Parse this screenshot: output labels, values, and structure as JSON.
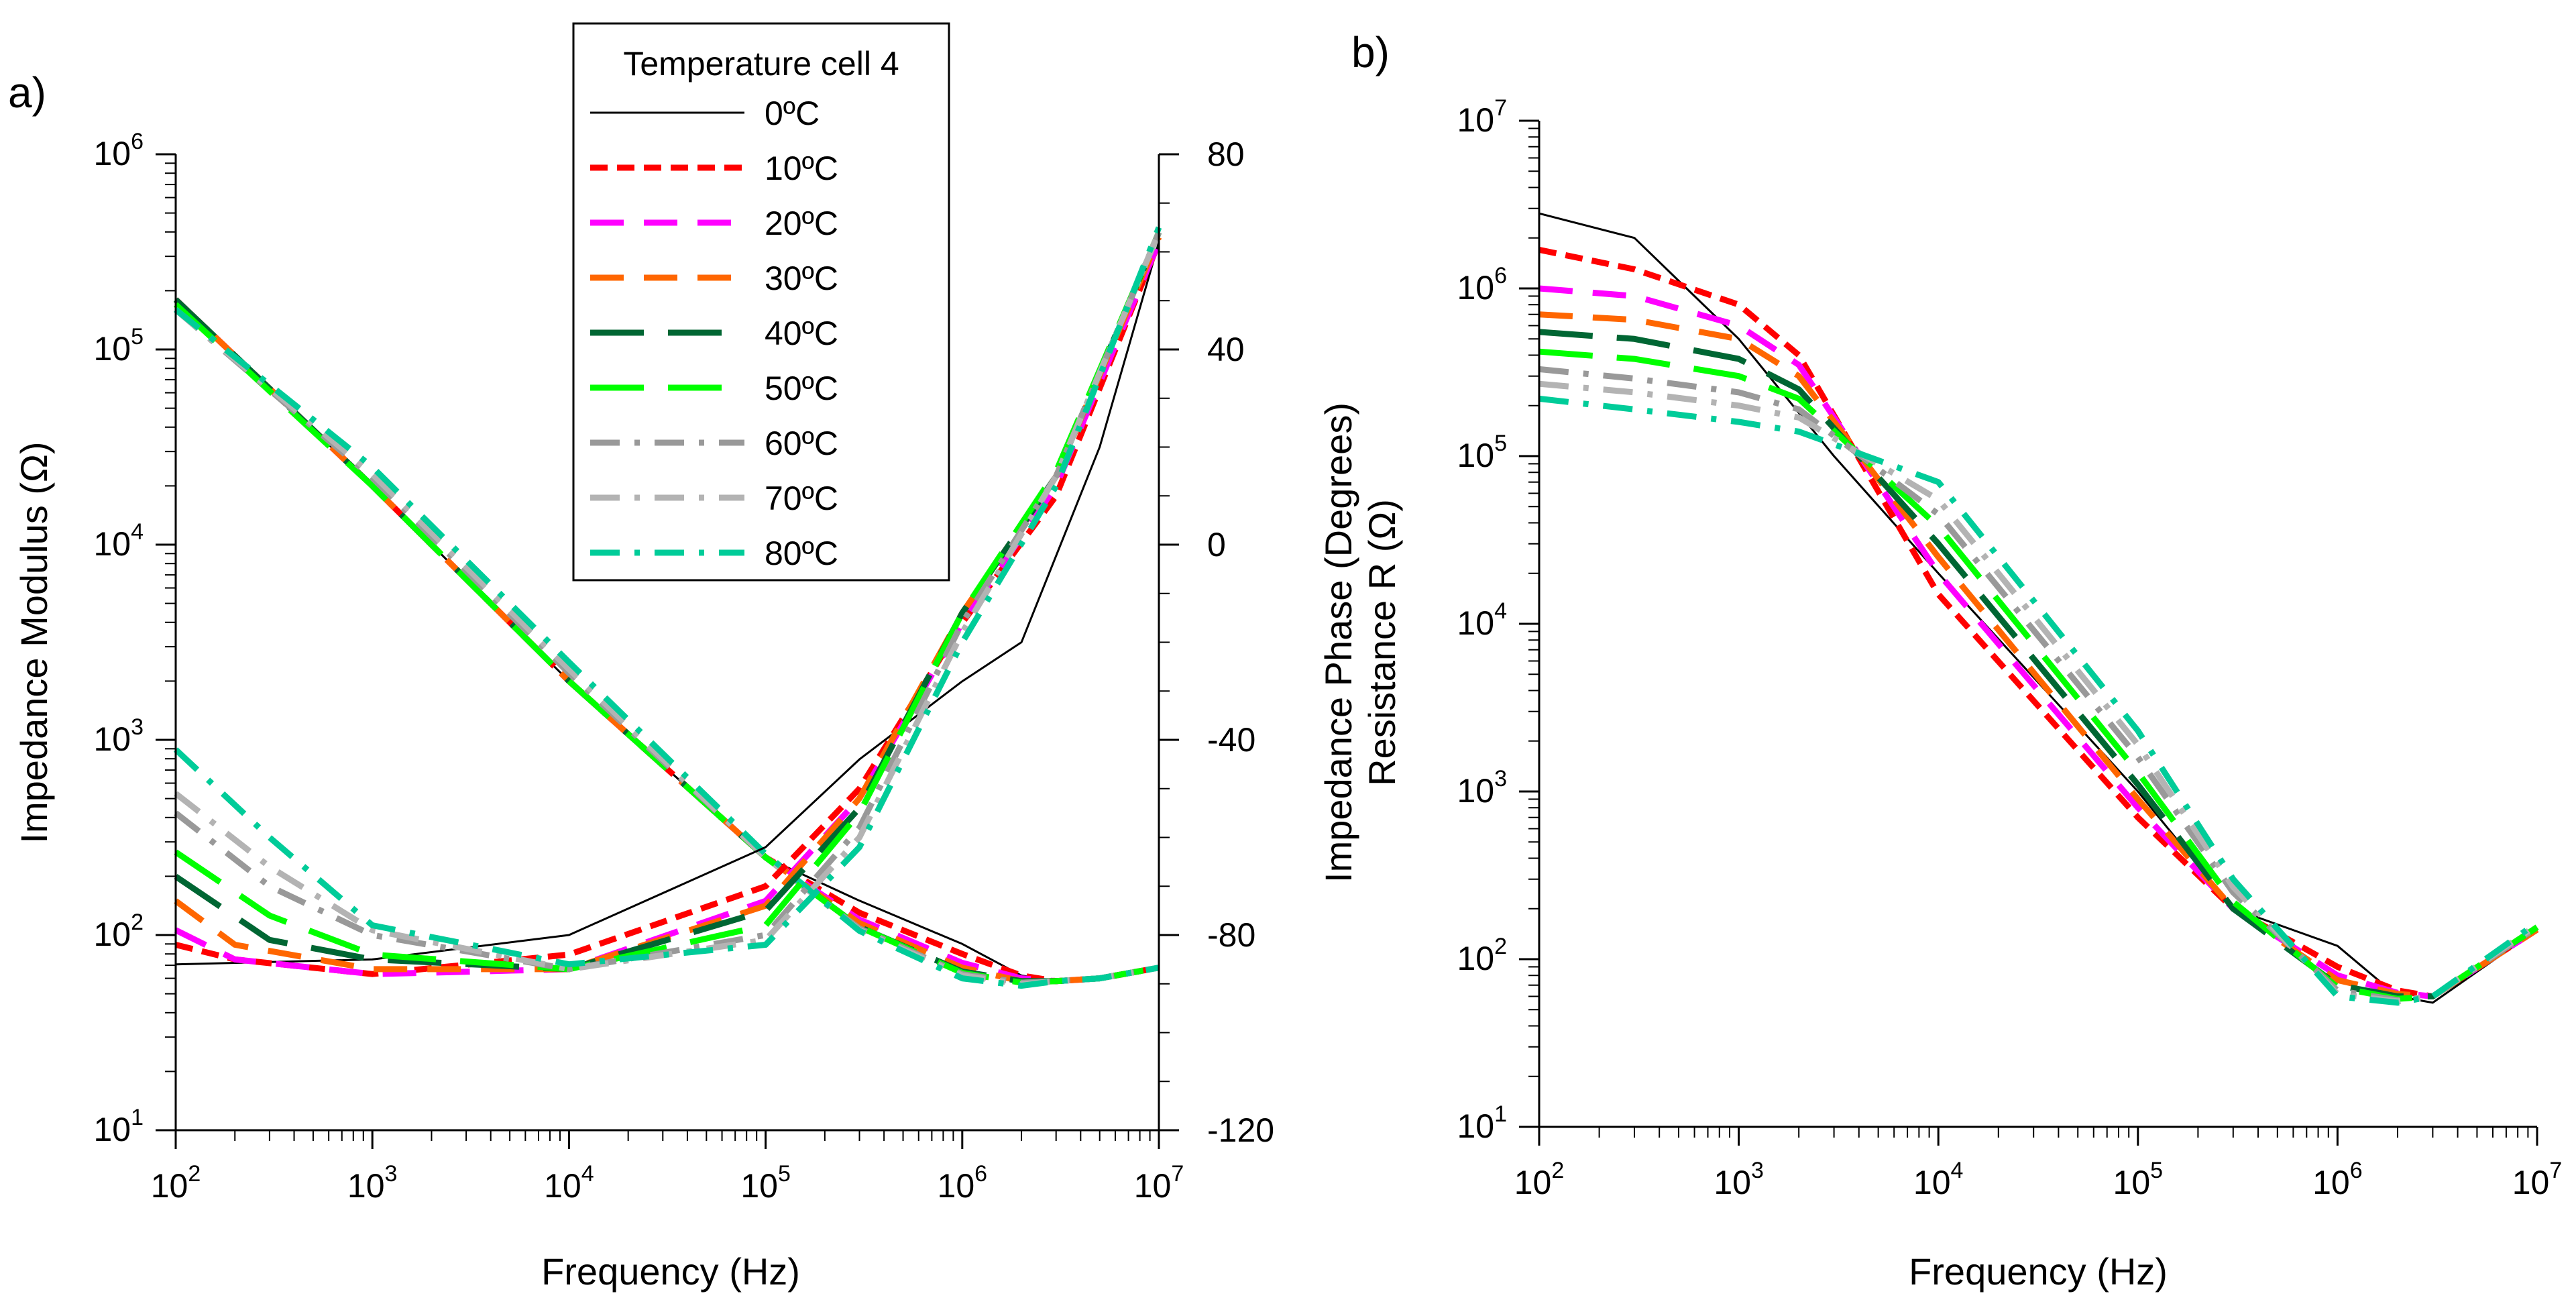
{
  "colors": {
    "0C": "#000000",
    "10C": "#ff0000",
    "20C": "#ff00ff",
    "30C": "#ff6600",
    "40C": "#006633",
    "50C": "#00ff00",
    "60C": "#999999",
    "70C": "#b3b3b3",
    "80C": "#00cc99"
  },
  "panel_a": {
    "label": "a)"
  },
  "panel_b": {
    "label": "b)"
  },
  "legend": {
    "title": "Temperature cell 4",
    "entries": [
      "0ºC",
      "10ºC",
      "20ºC",
      "30ºC",
      "40ºC",
      "50ºC",
      "60ºC",
      "70ºC",
      "80ºC"
    ]
  },
  "chart_data": [
    {
      "type": "line",
      "panel": "a",
      "title": "",
      "xlabel": "Frequency (Hz)",
      "ylabel": "Impedance Modulus (Ω)",
      "y2label": "Impedance Phase (Degrees)",
      "xscale": "log",
      "xlim": [
        100,
        10000000
      ],
      "yscale": "log",
      "ylim": [
        10,
        1000000
      ],
      "y2lim": [
        -120,
        80
      ],
      "x_ticks": [
        "10^2",
        "10^3",
        "10^4",
        "10^5",
        "10^6",
        "10^7"
      ],
      "y_ticks": [
        "10^1",
        "10^2",
        "10^3",
        "10^4",
        "10^5",
        "10^6"
      ],
      "y2_ticks": [
        "-120",
        "-80",
        "-40",
        "0",
        "40",
        "80"
      ],
      "modulus_series": [
        {
          "name": "0ºC",
          "color": "#000000",
          "dash": "solid",
          "width": 3,
          "x": [
            100,
            1000,
            10000,
            100000,
            300000,
            1000000,
            2000000,
            3000000,
            5000000,
            10000000
          ],
          "y": [
            180000,
            20000,
            2000,
            250,
            150,
            90,
            62,
            58,
            60,
            68
          ]
        },
        {
          "name": "10ºC",
          "color": "#ff0000",
          "dash": "dash",
          "width": 9,
          "x": [
            100,
            1000,
            10000,
            100000,
            300000,
            1000000,
            2000000,
            3000000,
            5000000,
            10000000
          ],
          "y": [
            180000,
            20000,
            2000,
            250,
            130,
            80,
            62,
            58,
            60,
            68
          ]
        },
        {
          "name": "20ºC",
          "color": "#ff00ff",
          "dash": "longdash",
          "width": 9,
          "x": [
            100,
            1000,
            10000,
            100000,
            300000,
            1000000,
            2000000,
            3000000,
            5000000,
            10000000
          ],
          "y": [
            180000,
            20000,
            2000,
            250,
            120,
            72,
            60,
            58,
            60,
            68
          ]
        },
        {
          "name": "30ºC",
          "color": "#ff6600",
          "dash": "longdash",
          "width": 9,
          "x": [
            100,
            1000,
            10000,
            100000,
            300000,
            1000000,
            2000000,
            3000000,
            5000000,
            10000000
          ],
          "y": [
            180000,
            20000,
            2000,
            250,
            115,
            68,
            58,
            58,
            60,
            68
          ]
        },
        {
          "name": "40ºC",
          "color": "#006633",
          "dash": "longdash2",
          "width": 9,
          "x": [
            100,
            1000,
            10000,
            100000,
            300000,
            1000000,
            2000000,
            3000000,
            5000000,
            10000000
          ],
          "y": [
            180000,
            20000,
            2000,
            250,
            110,
            65,
            58,
            58,
            60,
            68
          ]
        },
        {
          "name": "50ºC",
          "color": "#00ff00",
          "dash": "longdash2",
          "width": 9,
          "x": [
            100,
            1000,
            10000,
            100000,
            300000,
            1000000,
            2000000,
            3000000,
            5000000,
            10000000
          ],
          "y": [
            170000,
            20000,
            2000,
            250,
            110,
            64,
            57,
            58,
            60,
            68
          ]
        },
        {
          "name": "60ºC",
          "color": "#999999",
          "dash": "dashdot",
          "width": 9,
          "x": [
            100,
            1000,
            10000,
            100000,
            300000,
            1000000,
            2000000,
            3000000,
            5000000,
            10000000
          ],
          "y": [
            160000,
            22000,
            2200,
            250,
            108,
            63,
            57,
            58,
            60,
            68
          ]
        },
        {
          "name": "70ºC",
          "color": "#b3b3b3",
          "dash": "dashdot",
          "width": 9,
          "x": [
            100,
            1000,
            10000,
            100000,
            300000,
            1000000,
            2000000,
            3000000,
            5000000,
            10000000
          ],
          "y": [
            160000,
            23000,
            2300,
            250,
            106,
            62,
            56,
            58,
            60,
            68
          ]
        },
        {
          "name": "80ºC",
          "color": "#00cc99",
          "dash": "dashdot",
          "width": 9,
          "x": [
            100,
            1000,
            10000,
            100000,
            300000,
            1000000,
            2000000,
            3000000,
            5000000,
            10000000
          ],
          "y": [
            160000,
            25000,
            2500,
            260,
            105,
            60,
            55,
            58,
            60,
            68
          ]
        }
      ],
      "phase_series": [
        {
          "name": "0ºC",
          "color": "#000000",
          "dash": "solid",
          "width": 3,
          "x": [
            100,
            1000,
            10000,
            100000,
            300000,
            1000000,
            2000000,
            5000000,
            10000000
          ],
          "y": [
            -86,
            -85,
            -80,
            -62,
            -44,
            -28,
            -20,
            20,
            62
          ]
        },
        {
          "name": "10ºC",
          "color": "#ff0000",
          "dash": "dash",
          "width": 9,
          "x": [
            100,
            200,
            1000,
            10000,
            100000,
            300000,
            1000000,
            3000000,
            10000000
          ],
          "y": [
            -82,
            -85,
            -88,
            -84,
            -70,
            -50,
            -16,
            10,
            62
          ]
        },
        {
          "name": "20ºC",
          "color": "#ff00ff",
          "dash": "longdash",
          "width": 9,
          "x": [
            100,
            200,
            1000,
            10000,
            100000,
            300000,
            1000000,
            3000000,
            10000000
          ],
          "y": [
            -79,
            -85,
            -88,
            -87,
            -73,
            -52,
            -16,
            12,
            62
          ]
        },
        {
          "name": "30ºC",
          "color": "#ff6600",
          "dash": "longdash",
          "width": 9,
          "x": [
            100,
            200,
            1000,
            10000,
            100000,
            300000,
            1000000,
            3000000,
            10000000
          ],
          "y": [
            -73,
            -82,
            -87,
            -87,
            -74,
            -52,
            -14,
            14,
            63
          ]
        },
        {
          "name": "40ºC",
          "color": "#006633",
          "dash": "longdash2",
          "width": 9,
          "x": [
            100,
            300,
            1000,
            10000,
            100000,
            300000,
            1000000,
            3000000,
            10000000
          ],
          "y": [
            -68,
            -81,
            -85,
            -87,
            -75,
            -54,
            -14,
            14,
            64
          ]
        },
        {
          "name": "50ºC",
          "color": "#00ff00",
          "dash": "longdash2",
          "width": 9,
          "x": [
            100,
            300,
            1000,
            10000,
            100000,
            300000,
            1000000,
            3000000,
            10000000
          ],
          "y": [
            -63,
            -76,
            -84,
            -87,
            -78,
            -55,
            -14,
            15,
            64
          ]
        },
        {
          "name": "60ºC",
          "color": "#999999",
          "dash": "dashdot",
          "width": 9,
          "x": [
            100,
            300,
            1000,
            10000,
            100000,
            300000,
            1000000,
            3000000,
            10000000
          ],
          "y": [
            -55,
            -70,
            -80,
            -87,
            -80,
            -58,
            -16,
            14,
            64
          ]
        },
        {
          "name": "70ºC",
          "color": "#b3b3b3",
          "dash": "dashdot",
          "width": 9,
          "x": [
            100,
            300,
            1000,
            10000,
            100000,
            300000,
            1000000,
            3000000,
            10000000
          ],
          "y": [
            -51,
            -66,
            -79,
            -87,
            -81,
            -60,
            -18,
            14,
            64
          ]
        },
        {
          "name": "80ºC",
          "color": "#00cc99",
          "dash": "dashdot",
          "width": 9,
          "x": [
            100,
            300,
            1000,
            10000,
            100000,
            300000,
            1000000,
            3000000,
            10000000
          ],
          "y": [
            -42,
            -60,
            -78,
            -86,
            -82,
            -62,
            -20,
            12,
            65
          ]
        }
      ]
    },
    {
      "type": "line",
      "panel": "b",
      "title": "",
      "xlabel": "Frequency (Hz)",
      "ylabel": "Resistance R (Ω)",
      "xscale": "log",
      "xlim": [
        100,
        10000000
      ],
      "yscale": "log",
      "ylim": [
        10,
        10000000
      ],
      "x_ticks": [
        "10^2",
        "10^3",
        "10^4",
        "10^5",
        "10^6",
        "10^7"
      ],
      "y_ticks": [
        "10^1",
        "10^2",
        "10^3",
        "10^4",
        "10^5",
        "10^6",
        "10^7"
      ],
      "series": [
        {
          "name": "0ºC",
          "color": "#000000",
          "dash": "solid",
          "width": 3,
          "x": [
            100,
            300,
            1000,
            3000,
            10000,
            100000,
            300000,
            1000000,
            2000000,
            3000000,
            10000000
          ],
          "y": [
            2800000,
            2000000,
            500000,
            100000,
            20000,
            1000,
            200,
            120,
            60,
            55,
            150
          ]
        },
        {
          "name": "10ºC",
          "color": "#ff0000",
          "dash": "dash",
          "width": 9,
          "x": [
            100,
            300,
            1000,
            2000,
            10000,
            100000,
            300000,
            1000000,
            2000000,
            3000000,
            10000000
          ],
          "y": [
            1700000,
            1300000,
            800000,
            400000,
            15000,
            700,
            200,
            90,
            65,
            60,
            150
          ]
        },
        {
          "name": "20ºC",
          "color": "#ff00ff",
          "dash": "longdash",
          "width": 9,
          "x": [
            100,
            300,
            1000,
            2000,
            10000,
            100000,
            300000,
            1000000,
            2000000,
            3000000,
            10000000
          ],
          "y": [
            1000000,
            900000,
            600000,
            350000,
            20000,
            800,
            200,
            80,
            63,
            60,
            150
          ]
        },
        {
          "name": "30ºC",
          "color": "#ff6600",
          "dash": "longdash",
          "width": 9,
          "x": [
            100,
            300,
            1000,
            2000,
            10000,
            100000,
            300000,
            1000000,
            2000000,
            3000000,
            10000000
          ],
          "y": [
            700000,
            650000,
            500000,
            300000,
            25000,
            900,
            200,
            75,
            62,
            60,
            150
          ]
        },
        {
          "name": "40ºC",
          "color": "#006633",
          "dash": "longdash2",
          "width": 9,
          "x": [
            100,
            300,
            1000,
            2000,
            10000,
            100000,
            300000,
            1000000,
            2000000,
            3000000,
            10000000
          ],
          "y": [
            550000,
            500000,
            380000,
            250000,
            30000,
            1100,
            200,
            70,
            60,
            60,
            155
          ]
        },
        {
          "name": "50ºC",
          "color": "#00ff00",
          "dash": "longdash2",
          "width": 9,
          "x": [
            100,
            300,
            1000,
            2000,
            10000,
            100000,
            300000,
            1000000,
            2000000,
            3000000,
            10000000
          ],
          "y": [
            420000,
            380000,
            300000,
            220000,
            38000,
            1300,
            220,
            68,
            58,
            60,
            155
          ]
        },
        {
          "name": "60ºC",
          "color": "#999999",
          "dash": "dashdot",
          "width": 9,
          "x": [
            100,
            300,
            1000,
            2000,
            10000,
            100000,
            300000,
            1000000,
            2000000,
            3000000,
            10000000
          ],
          "y": [
            330000,
            290000,
            240000,
            190000,
            45000,
            1600,
            250,
            65,
            57,
            60,
            155
          ]
        },
        {
          "name": "70ºC",
          "color": "#b3b3b3",
          "dash": "dashdot",
          "width": 9,
          "x": [
            100,
            300,
            1000,
            2000,
            10000,
            100000,
            300000,
            1000000,
            2000000,
            3000000,
            10000000
          ],
          "y": [
            270000,
            240000,
            200000,
            170000,
            55000,
            1900,
            270,
            62,
            56,
            60,
            160
          ]
        },
        {
          "name": "80ºC",
          "color": "#00cc99",
          "dash": "dashdot",
          "width": 9,
          "x": [
            100,
            300,
            1000,
            2000,
            10000,
            100000,
            300000,
            1000000,
            2000000,
            3000000,
            10000000
          ],
          "y": [
            220000,
            190000,
            160000,
            140000,
            70000,
            2300,
            300,
            60,
            55,
            60,
            165
          ]
        }
      ]
    }
  ]
}
